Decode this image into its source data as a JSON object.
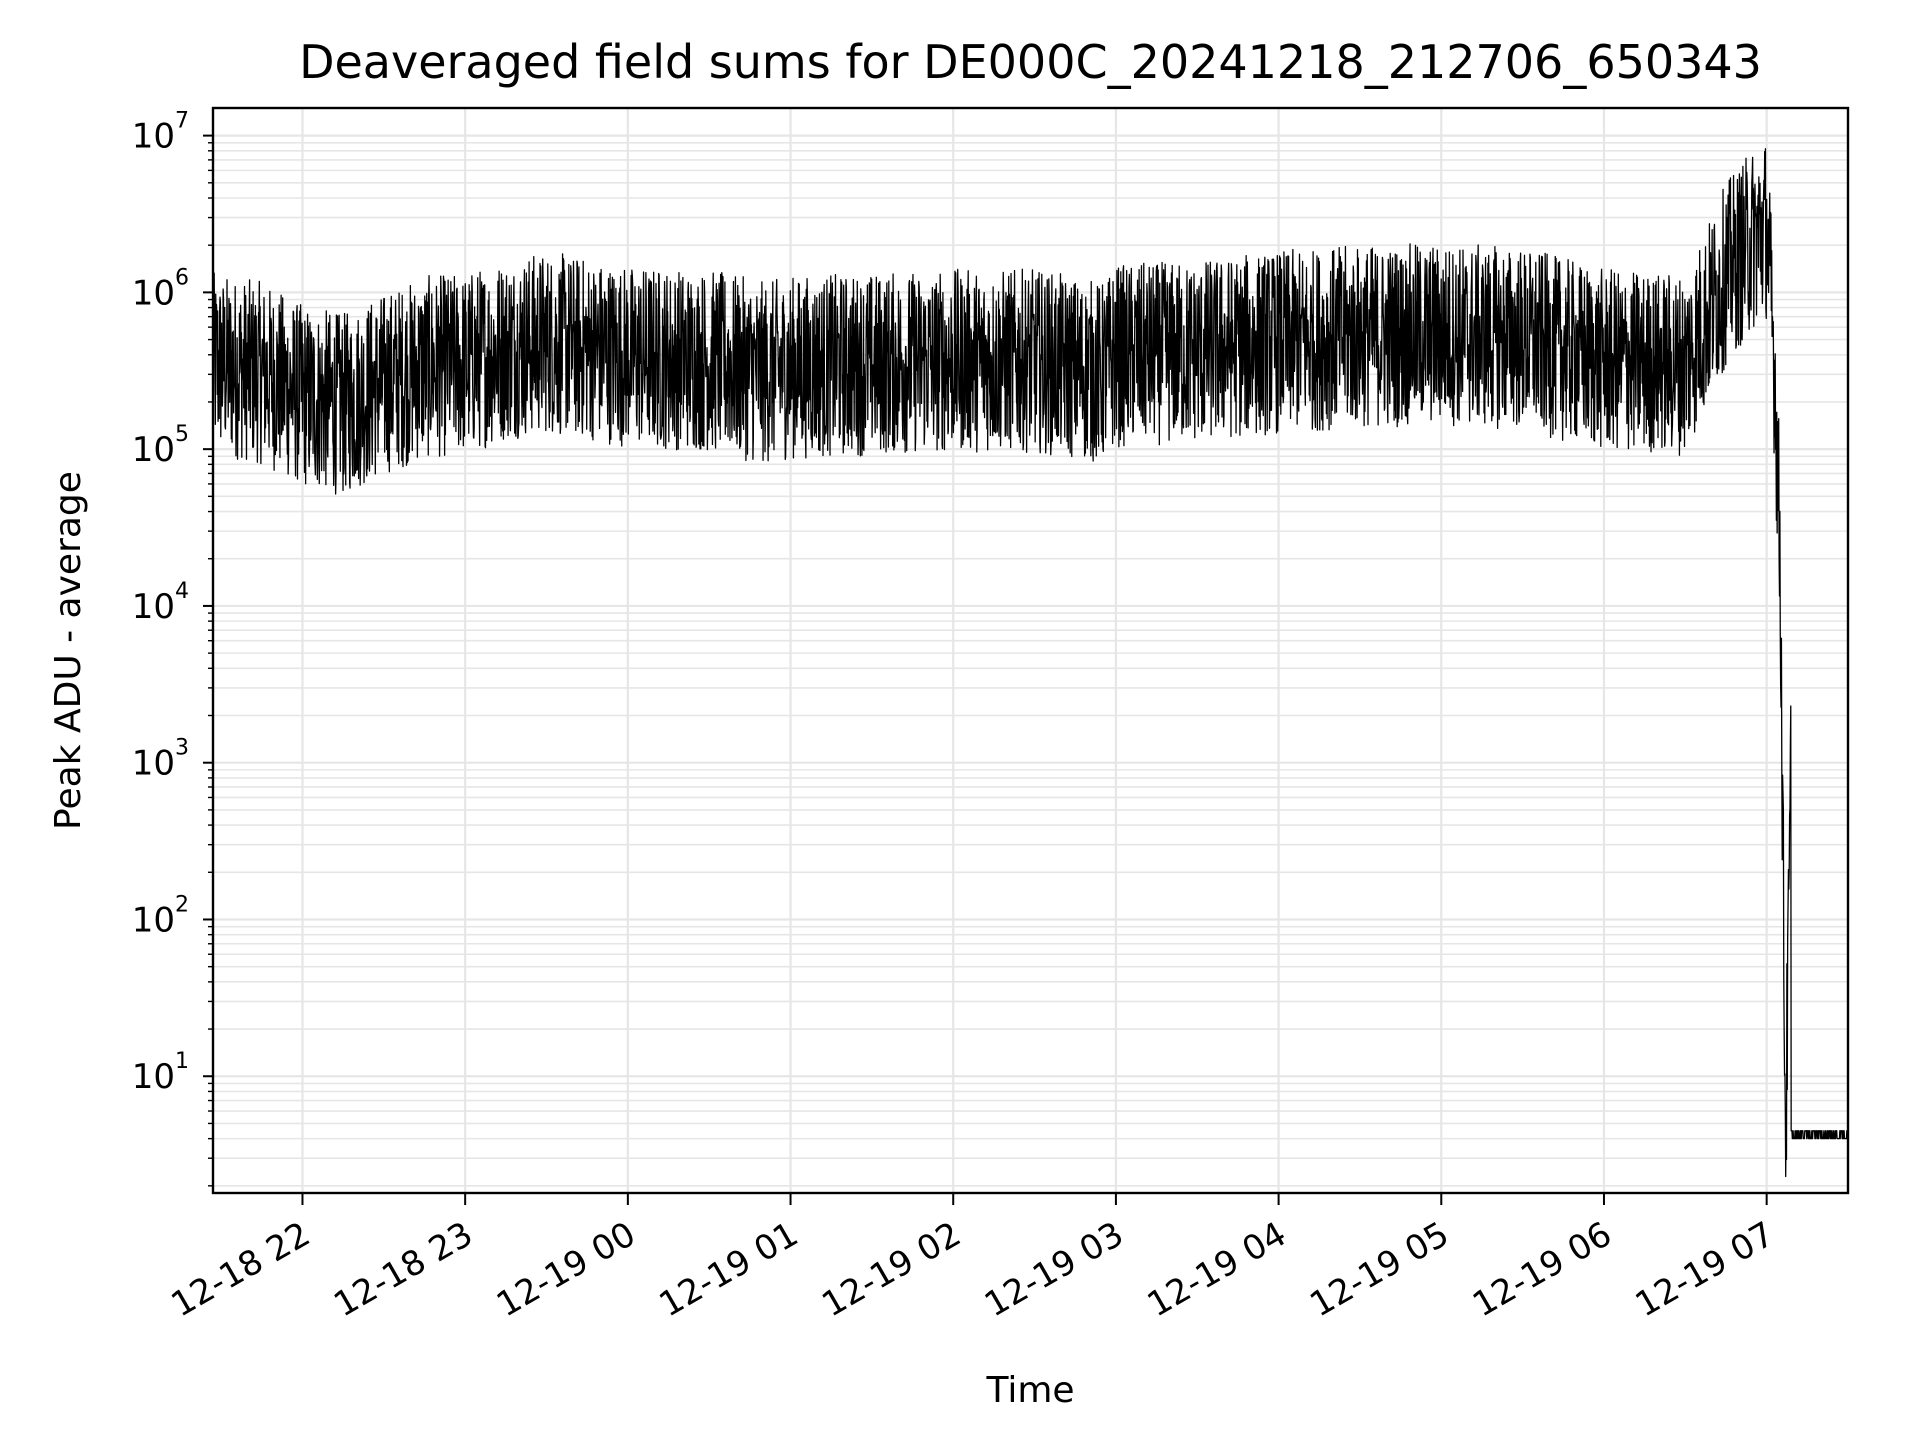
{
  "chart_data": {
    "type": "line",
    "title": "Deaveraged field sums for DE000C_20241218_212706_650343",
    "xlabel": "Time",
    "ylabel": "Peak ADU - average",
    "x_range": [
      "2024-12-18 21:27",
      "2024-12-19 07:30"
    ],
    "xticks": [
      "12-18 22",
      "12-18 23",
      "12-19 00",
      "12-19 01",
      "12-19 02",
      "12-19 03",
      "12-19 04",
      "12-19 05",
      "12-19 06",
      "12-19 07"
    ],
    "y_scale": "log",
    "ylim": [
      1.8,
      15000000
    ],
    "yticks": [
      {
        "base": "10",
        "exp": "1",
        "value": 10
      },
      {
        "base": "10",
        "exp": "2",
        "value": 100
      },
      {
        "base": "10",
        "exp": "3",
        "value": 1000
      },
      {
        "base": "10",
        "exp": "4",
        "value": 10000
      },
      {
        "base": "10",
        "exp": "5",
        "value": 100000
      },
      {
        "base": "10",
        "exp": "6",
        "value": 1000000
      },
      {
        "base": "10",
        "exp": "7",
        "value": 10000000
      }
    ],
    "grid": true,
    "line_color": "#000000",
    "grid_color": "#e6e6e6",
    "series": [
      {
        "x": [
          "2024-12-18 21:27",
          "2024-12-18 21:45",
          "2024-12-18 22:00",
          "2024-12-18 22:15",
          "2024-12-18 22:30",
          "2024-12-18 22:45",
          "2024-12-18 23:00",
          "2024-12-18 23:15",
          "2024-12-18 23:30",
          "2024-12-18 23:45",
          "2024-12-19 00:00",
          "2024-12-19 00:30",
          "2024-12-19 00:50",
          "2024-12-19 01:00",
          "2024-12-19 01:30",
          "2024-12-19 02:00",
          "2024-12-19 02:30",
          "2024-12-19 02:55",
          "2024-12-19 03:00",
          "2024-12-19 03:30",
          "2024-12-19 04:00",
          "2024-12-19 04:30",
          "2024-12-19 05:00",
          "2024-12-19 05:30",
          "2024-12-19 06:00",
          "2024-12-19 06:30",
          "2024-12-19 06:45",
          "2024-12-19 06:55",
          "2024-12-19 07:00",
          "2024-12-19 07:03",
          "2024-12-19 07:05",
          "2024-12-19 07:07",
          "2024-12-19 07:09",
          "2024-12-19 07:30"
        ],
        "y": [
          400000,
          350000,
          250000,
          220000,
          300000,
          380000,
          400000,
          500000,
          550000,
          500000,
          450000,
          420000,
          350000,
          380000,
          400000,
          420000,
          420000,
          350000,
          450000,
          480000,
          550000,
          600000,
          620000,
          580000,
          420000,
          400000,
          1500000,
          2500000,
          3000000,
          300000,
          20000,
          4,
          1000,
          4
        ],
        "noise_decades": 0.9
      }
    ]
  }
}
